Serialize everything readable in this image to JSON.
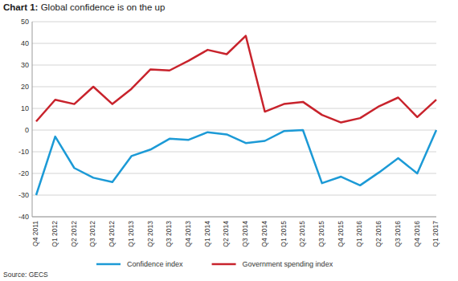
{
  "chart_data": {
    "type": "line",
    "title": "Chart 1: Global confidence is on the up",
    "source": "Source: GECS",
    "categories": [
      "Q4 2011",
      "Q1 2012",
      "Q2 2012",
      "Q3 2012",
      "Q4 2012",
      "Q1 2013",
      "Q2 2013",
      "Q3 2013",
      "Q4 2013",
      "Q1 2014",
      "Q2 2014",
      "Q3 2014",
      "Q4 2014",
      "Q1 2015",
      "Q2 2015",
      "Q3 2015",
      "Q4 2015",
      "Q1 2016",
      "Q2 2016",
      "Q3 2016",
      "Q4 2016",
      "Q1 2017"
    ],
    "series": [
      {
        "name": "Confidence index",
        "color": "#1c9ad6",
        "values": [
          -30,
          -3,
          -17.5,
          -22,
          -24,
          -12,
          -9,
          -4,
          -4.5,
          -1,
          -2,
          -6,
          -5,
          -0.5,
          0,
          -24.5,
          -21.5,
          -25.5,
          -19.5,
          -13,
          -20,
          0
        ]
      },
      {
        "name": "Government spending index",
        "color": "#c8232c",
        "values": [
          4,
          14,
          12,
          20,
          12,
          19,
          28,
          27.5,
          32,
          37,
          35,
          43.5,
          8.5,
          12,
          13,
          7,
          3.5,
          5.5,
          11,
          15,
          6,
          14
        ]
      }
    ],
    "ylim": [
      -40,
      50
    ],
    "yticks": [
      -40,
      -30,
      -20,
      -10,
      0,
      10,
      20,
      30,
      40,
      50
    ],
    "grid": true,
    "legend": "bottom"
  }
}
